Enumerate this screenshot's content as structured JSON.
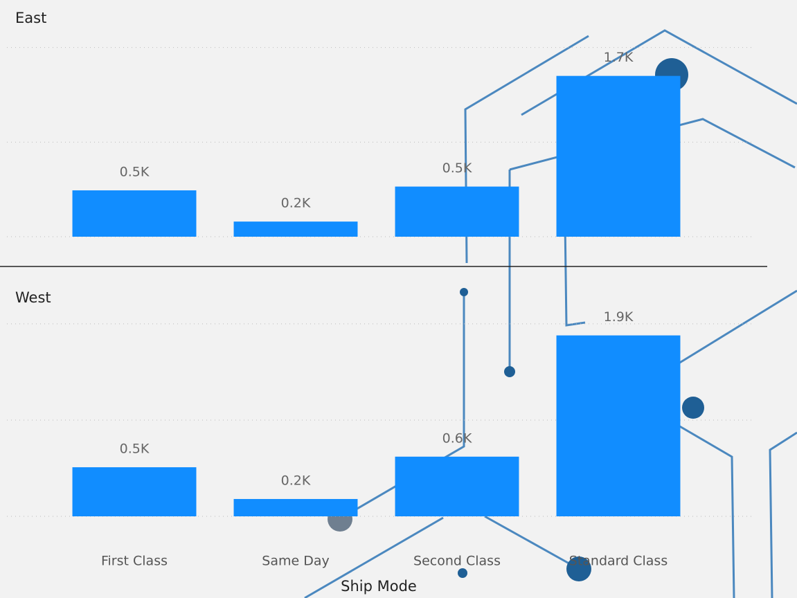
{
  "chart_data": {
    "type": "bar",
    "categories": [
      "First Class",
      "Same Day",
      "Second Class",
      "Standard Class"
    ],
    "x_label": "Ship Mode",
    "color": "#118dff",
    "ylim": [
      0,
      2.1
    ],
    "gridlines": [
      0,
      1,
      2
    ],
    "panels": [
      {
        "title": "East",
        "values": [
          0.49,
          0.16,
          0.53,
          1.7
        ],
        "value_labels": [
          "0.5K",
          "0.2K",
          "0.5K",
          "1.7K"
        ]
      },
      {
        "title": "West",
        "values": [
          0.51,
          0.18,
          0.62,
          1.88
        ],
        "value_labels": [
          "0.5K",
          "0.2K",
          "0.6K",
          "1.9K"
        ]
      }
    ]
  }
}
